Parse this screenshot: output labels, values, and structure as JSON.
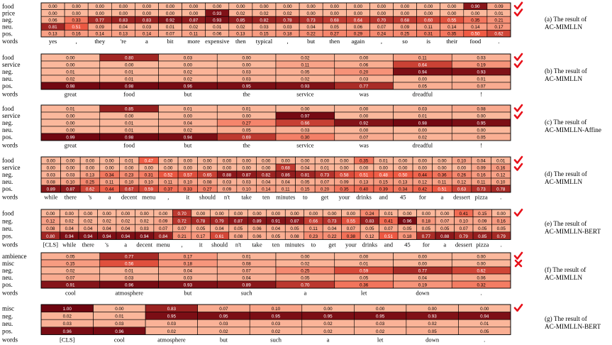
{
  "chart_data": [
    {
      "type": "heatmap",
      "caption": [
        "(a)  The result of",
        "AC-MIMLLN"
      ],
      "rows": [
        "food",
        "price",
        "neg.",
        "neu.",
        "pos."
      ],
      "columns": [
        "yes",
        ",",
        "they",
        "'re",
        "a",
        "bit",
        "more",
        "expensive",
        "then",
        "typical",
        ",",
        "but",
        "then",
        "again",
        ",",
        "so",
        "is",
        "their",
        "food",
        "."
      ],
      "row_marks": [
        "check",
        "check"
      ],
      "values": [
        [
          0.0,
          0.0,
          0.0,
          0.0,
          0.0,
          0.0,
          0.0,
          0.0,
          0.0,
          0.0,
          0.0,
          0.0,
          0.0,
          0.0,
          0.0,
          0.0,
          0.0,
          0.0,
          0.9,
          0.09
        ],
        [
          0.0,
          0.0,
          0.0,
          0.0,
          0.0,
          0.0,
          0.0,
          0.93,
          0.02,
          0.02,
          0.02,
          0.0,
          0.0,
          0.0,
          0.0,
          0.0,
          0.0,
          0.0,
          0.0,
          0.01
        ],
        [
          0.06,
          0.33,
          0.77,
          0.83,
          0.83,
          0.92,
          0.87,
          0.93,
          0.85,
          0.82,
          0.78,
          0.73,
          0.68,
          0.64,
          0.7,
          0.68,
          0.6,
          0.55,
          0.35,
          0.21
        ],
        [
          0.81,
          0.51,
          0.09,
          0.04,
          0.03,
          0.01,
          0.02,
          0.01,
          0.02,
          0.03,
          0.03,
          0.04,
          0.05,
          0.06,
          0.07,
          0.09,
          0.11,
          0.14,
          0.14,
          0.17
        ],
        [
          0.13,
          0.16,
          0.14,
          0.13,
          0.14,
          0.07,
          0.11,
          0.06,
          0.13,
          0.15,
          0.18,
          0.22,
          0.27,
          0.29,
          0.24,
          0.25,
          0.31,
          0.35,
          0.5,
          0.62
        ]
      ]
    },
    {
      "type": "heatmap",
      "caption": [
        "(b) The result of",
        "AC-MIMLLN"
      ],
      "rows": [
        "food",
        "service",
        "neg.",
        "neu.",
        "pos."
      ],
      "columns": [
        "great",
        "food",
        "but",
        "the",
        "service",
        "was",
        "dreadful",
        "!"
      ],
      "row_marks": [
        "check",
        "check"
      ],
      "values": [
        [
          0.0,
          0.8,
          0.03,
          0.0,
          0.02,
          0.0,
          0.11,
          0.03
        ],
        [
          0.0,
          0.0,
          0.0,
          0.0,
          0.11,
          0.06,
          0.64,
          0.19
        ],
        [
          0.01,
          0.01,
          0.02,
          0.03,
          0.05,
          0.2,
          0.94,
          0.93
        ],
        [
          0.02,
          0.01,
          0.02,
          0.03,
          0.02,
          0.03,
          0.0,
          0.01
        ],
        [
          0.98,
          0.98,
          0.96,
          0.95,
          0.93,
          0.77,
          0.05,
          0.07
        ]
      ]
    },
    {
      "type": "heatmap",
      "caption": [
        "(c) The result of",
        "AC-MIMLLN-Affine"
      ],
      "rows": [
        "food",
        "service",
        "neg.",
        "neu.",
        "pos."
      ],
      "columns": [
        "great",
        "food",
        "but",
        "the",
        "service",
        "was",
        "dreadful",
        "!"
      ],
      "row_marks": [
        "check",
        "check"
      ],
      "values": [
        [
          0.01,
          0.85,
          0.01,
          0.01,
          0.0,
          0.0,
          0.03,
          0.08
        ],
        [
          0.0,
          0.0,
          0.0,
          0.0,
          0.97,
          0.0,
          0.01,
          0.0
        ],
        [
          0.0,
          0.01,
          0.04,
          0.27,
          0.66,
          0.92,
          0.98,
          0.95
        ],
        [
          0.0,
          0.01,
          0.02,
          0.05,
          0.03,
          0.0,
          0.0,
          0.0
        ],
        [
          0.99,
          0.98,
          0.94,
          0.69,
          0.3,
          0.07,
          0.02,
          0.05
        ]
      ]
    },
    {
      "type": "heatmap",
      "caption": [
        "(d) The result of",
        "AC-MIMLLN"
      ],
      "rows": [
        "food",
        "service",
        "neg.",
        "neu.",
        "pos."
      ],
      "columns": [
        "while",
        "there",
        "'s",
        "a",
        "decent",
        "menu",
        ",",
        "it",
        "should",
        "n't",
        "take",
        "ten",
        "minutes",
        "to",
        "get",
        "your",
        "drinks",
        "and",
        "45",
        "for",
        "a",
        "dessert",
        "pizza",
        "."
      ],
      "row_marks": [
        "check",
        "check"
      ],
      "values": [
        [
          0.0,
          0.0,
          0.0,
          0.0,
          0.01,
          0.47,
          0.0,
          0.0,
          0.0,
          0.0,
          0.0,
          0.0,
          0.0,
          0.0,
          0.0,
          0.0,
          0.35,
          0.01,
          0.0,
          0.0,
          0.0,
          0.1,
          0.04,
          0.01
        ],
        [
          0.0,
          0.0,
          0.0,
          0.0,
          0.0,
          0.0,
          0.0,
          0.0,
          0.0,
          0.0,
          0.0,
          0.0,
          0.68,
          0.04,
          0.01,
          0.0,
          0.0,
          0.0,
          0.0,
          0.0,
          0.0,
          0.0,
          0.09,
          0.16
        ],
        [
          0.03,
          0.03,
          0.13,
          0.34,
          0.23,
          0.31,
          0.52,
          0.57,
          0.65,
          0.88,
          0.87,
          0.82,
          0.86,
          0.81,
          0.73,
          0.58,
          0.51,
          0.48,
          0.5,
          0.44,
          0.36,
          0.26,
          0.16,
          0.12
        ],
        [
          0.08,
          0.1,
          0.25,
          0.11,
          0.1,
          0.1,
          0.11,
          0.1,
          0.08,
          0.03,
          0.03,
          0.04,
          0.04,
          0.05,
          0.07,
          0.09,
          0.13,
          0.15,
          0.13,
          0.12,
          0.11,
          0.12,
          0.11,
          0.1
        ],
        [
          0.89,
          0.87,
          0.62,
          0.44,
          0.67,
          0.59,
          0.37,
          0.33,
          0.27,
          0.09,
          0.1,
          0.14,
          0.11,
          0.15,
          0.2,
          0.35,
          0.4,
          0.39,
          0.34,
          0.42,
          0.51,
          0.63,
          0.73,
          0.78
        ]
      ]
    },
    {
      "type": "heatmap",
      "caption": [
        "(e) The result of",
        "AC-MIMLLN-BERT"
      ],
      "rows": [
        "food",
        "neg.",
        "neu.",
        "pos."
      ],
      "columns": [
        "[CLS]",
        "while",
        "there",
        "'s",
        "a",
        "decent",
        "menu",
        ",",
        "it",
        "should",
        "n't",
        "take",
        "ten",
        "minutes",
        "to",
        "get",
        "your",
        "drinks",
        "and",
        "45",
        "for",
        "a",
        "dessert",
        "pizza",
        "."
      ],
      "row_marks": [
        "check"
      ],
      "values": [
        [
          0.0,
          0.0,
          0.0,
          0.0,
          0.0,
          0.0,
          0.0,
          0.7,
          0.0,
          0.0,
          0.0,
          0.0,
          0.0,
          0.0,
          0.0,
          0.0,
          0.0,
          0.24,
          0.01,
          0.0,
          0.0,
          0.0,
          0.41,
          0.15,
          0.0
        ],
        [
          0.12,
          0.02,
          0.02,
          0.02,
          0.02,
          0.02,
          0.09,
          0.72,
          0.78,
          0.79,
          0.87,
          0.89,
          0.91,
          0.87,
          0.66,
          0.73,
          0.55,
          0.83,
          0.41,
          0.96,
          0.18,
          0.07,
          0.1,
          0.09,
          0.16
        ],
        [
          0.08,
          0.04,
          0.04,
          0.04,
          0.04,
          0.03,
          0.07,
          0.07,
          0.05,
          0.04,
          0.05,
          0.06,
          0.04,
          0.05,
          0.11,
          0.04,
          0.07,
          0.05,
          0.07,
          0.05,
          0.05,
          0.05,
          0.07,
          0.05,
          0.05
        ],
        [
          0.8,
          0.94,
          0.94,
          0.94,
          0.94,
          0.94,
          0.84,
          0.21,
          0.17,
          0.61,
          0.08,
          0.06,
          0.05,
          0.08,
          0.23,
          0.22,
          0.38,
          0.12,
          0.51,
          0.18,
          0.77,
          0.88,
          0.79,
          0.85,
          0.79
        ]
      ]
    },
    {
      "type": "heatmap",
      "caption": [
        "(f) The result of",
        "AC-MIMLLN"
      ],
      "rows": [
        "ambience",
        "misc",
        "neg.",
        "neu.",
        "pos."
      ],
      "columns": [
        "cool",
        "atmosphere",
        "but",
        "such",
        "a",
        "let",
        "down",
        "."
      ],
      "row_marks": [
        "check",
        "cross"
      ],
      "values": [
        [
          0.05,
          0.77,
          0.17,
          0.01,
          0.0,
          0.0,
          0.0,
          0.0
        ],
        [
          0.15,
          0.56,
          0.18,
          0.08,
          0.02,
          0.01,
          0.0,
          0.0
        ],
        [
          0.02,
          0.01,
          0.04,
          0.07,
          0.25,
          0.59,
          0.77,
          0.62
        ],
        [
          0.07,
          0.03,
          0.03,
          0.04,
          0.05,
          0.05,
          0.04,
          0.06
        ],
        [
          0.91,
          0.96,
          0.93,
          0.89,
          0.7,
          0.36,
          0.19,
          0.32
        ]
      ]
    },
    {
      "type": "heatmap",
      "caption": [
        "(g) The result of",
        "AC-MIMLLN-BERT"
      ],
      "rows": [
        "misc",
        "neg.",
        "neu.",
        "pos."
      ],
      "columns": [
        "[CLS]",
        "cool",
        "atmosphere",
        "but",
        "such",
        "a",
        "let",
        "down",
        "."
      ],
      "row_marks": [
        "check"
      ],
      "values": [
        [
          1.0,
          0.0,
          0.83,
          0.07,
          0.1,
          0.0,
          0.0,
          0.0,
          0.0
        ],
        [
          0.02,
          0.01,
          0.95,
          0.95,
          0.95,
          0.95,
          0.95,
          0.93,
          0.94
        ],
        [
          0.03,
          0.03,
          0.03,
          0.03,
          0.03,
          0.02,
          0.03,
          0.02,
          0.01
        ],
        [
          0.96,
          0.96,
          0.02,
          0.02,
          0.02,
          0.02,
          0.02,
          0.05,
          0.05
        ]
      ]
    }
  ],
  "row_axis_label": "words",
  "colors": {
    "low": "#fbb89c",
    "mid": "#ef5a43",
    "high": "#6e0510",
    "border": "#000000",
    "check": "#e8111a",
    "cross": "#e8111a"
  }
}
